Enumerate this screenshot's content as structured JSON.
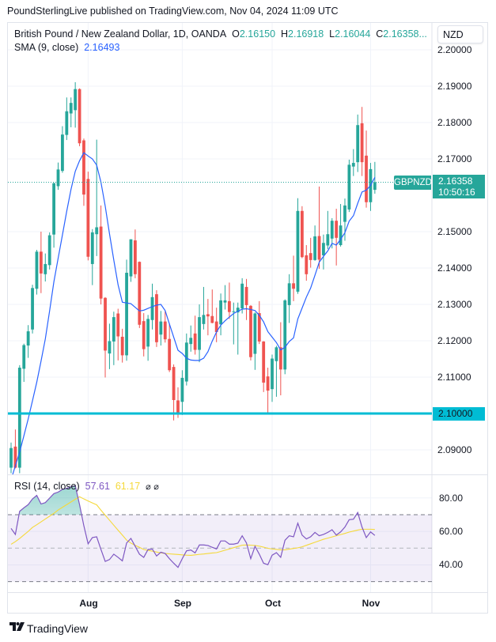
{
  "header": {
    "publish_line": "PoundSterlingLive published on TradingView.com, Nov 04, 2024 11:09 UTC"
  },
  "legend": {
    "symbol_title": "British Pound / New Zealand Dollar, 1D, OANDA",
    "open_label": "O",
    "open": "2.16150",
    "high_label": "H",
    "high": "2.16918",
    "low_label": "L",
    "low": "2.16044",
    "close_label": "C",
    "close": "2.16358...",
    "sma_title": "SMA (9, close)",
    "sma_value": "2.16493"
  },
  "currency_button": "NZD",
  "price_axis": [
    "2.20000",
    "2.19000",
    "2.18000",
    "2.17000",
    "2.15000",
    "2.14000",
    "2.13000",
    "2.12000",
    "2.11000",
    "2.09000"
  ],
  "last_price": {
    "symbol": "GBPNZD",
    "price": "2.16358",
    "countdown": "10:50:16"
  },
  "horizontal_line": {
    "label": "2.10000",
    "price": 2.1,
    "color": "#00bcd4"
  },
  "rsi_legend": {
    "title": "RSI (14, close)",
    "rsi_value": "57.61",
    "ma_value": "61.17",
    "icons": [
      "hidden-value-icon",
      "hidden-value-icon"
    ]
  },
  "rsi_axis": [
    "80.00",
    "60.00",
    "40.00"
  ],
  "time_axis": [
    "Aug",
    "Sep",
    "Oct",
    "Nov"
  ],
  "footer": {
    "brand": "TradingView",
    "logo_icon": "tradingview-logo-icon"
  },
  "colors": {
    "up": "#26a69a",
    "down": "#ef5350",
    "sma": "#2962ff",
    "rsi": "#7e57c2",
    "rsi_ma": "#f5d93a",
    "hline": "#00bcd4"
  },
  "chart_data": {
    "type": "candlestick",
    "symbol": "GBPNZD",
    "interval": "1D",
    "ylim": [
      2.08,
      2.2
    ],
    "grid": true,
    "month_ticks": [
      {
        "label": "Aug",
        "date": "2024-08-01"
      },
      {
        "label": "Sep",
        "date": "2024-09-02"
      },
      {
        "label": "Oct",
        "date": "2024-10-01"
      },
      {
        "label": "Nov",
        "date": "2024-11-01"
      }
    ],
    "dates": [
      "2024-07-08",
      "2024-07-09",
      "2024-07-10",
      "2024-07-11",
      "2024-07-12",
      "2024-07-15",
      "2024-07-16",
      "2024-07-17",
      "2024-07-18",
      "2024-07-19",
      "2024-07-22",
      "2024-07-23",
      "2024-07-24",
      "2024-07-25",
      "2024-07-26",
      "2024-07-29",
      "2024-07-30",
      "2024-07-31",
      "2024-08-01",
      "2024-08-02",
      "2024-08-05",
      "2024-08-06",
      "2024-08-07",
      "2024-08-08",
      "2024-08-09",
      "2024-08-12",
      "2024-08-13",
      "2024-08-14",
      "2024-08-15",
      "2024-08-16",
      "2024-08-19",
      "2024-08-20",
      "2024-08-21",
      "2024-08-22",
      "2024-08-23",
      "2024-08-26",
      "2024-08-27",
      "2024-08-28",
      "2024-08-29",
      "2024-08-30",
      "2024-09-02",
      "2024-09-03",
      "2024-09-04",
      "2024-09-05",
      "2024-09-06",
      "2024-09-09",
      "2024-09-10",
      "2024-09-11",
      "2024-09-12",
      "2024-09-13",
      "2024-09-16",
      "2024-09-17",
      "2024-09-18",
      "2024-09-19",
      "2024-09-20",
      "2024-09-23",
      "2024-09-24",
      "2024-09-25",
      "2024-09-26",
      "2024-09-27",
      "2024-09-30",
      "2024-10-01",
      "2024-10-02",
      "2024-10-03",
      "2024-10-04",
      "2024-10-07",
      "2024-10-08",
      "2024-10-09",
      "2024-10-10",
      "2024-10-11",
      "2024-10-14",
      "2024-10-15",
      "2024-10-16",
      "2024-10-17",
      "2024-10-18",
      "2024-10-21",
      "2024-10-22",
      "2024-10-23",
      "2024-10-24",
      "2024-10-25",
      "2024-10-28",
      "2024-10-29",
      "2024-10-30",
      "2024-10-31",
      "2024-11-01",
      "2024-11-04"
    ],
    "open": [
      2.0851,
      2.0909,
      2.0851,
      2.1123,
      2.1187,
      2.1231,
      2.1343,
      2.1445,
      2.1383,
      2.1408,
      2.1492,
      2.1625,
      2.1667,
      2.1766,
      2.1825,
      2.1834,
      2.1892,
      2.1751,
      2.1645,
      2.1411,
      2.1493,
      2.1514,
      2.1318,
      2.1165,
      2.1198,
      2.1275,
      2.1211,
      2.116,
      2.1377,
      2.1476,
      2.1417,
      2.1254,
      2.1184,
      2.1257,
      2.1328,
      2.1217,
      2.1253,
      2.1205,
      2.1128,
      2.1036,
      2.1032,
      2.1088,
      2.1191,
      2.122,
      2.1175,
      2.1246,
      2.1273,
      2.1268,
      2.1253,
      2.1245,
      2.1305,
      2.1309,
      2.128,
      2.1278,
      2.1289,
      2.1348,
      2.1296,
      2.1164,
      2.1276,
      2.1198,
      2.1102,
      2.1067,
      2.1144,
      2.1182,
      2.1121,
      2.1298,
      2.1358,
      2.1335,
      2.1557,
      2.1435,
      2.1441,
      2.1422,
      2.1488,
      2.1435,
      2.1462,
      2.1481,
      2.153,
      2.1463,
      2.1527,
      2.1561,
      2.1679,
      2.1691,
      2.1798,
      2.1709,
      2.1581,
      2.1615
    ],
    "high": [
      2.092,
      2.0956,
      2.1133,
      2.1192,
      2.1243,
      2.1354,
      2.145,
      2.15,
      2.144,
      2.1498,
      2.1635,
      2.169,
      2.179,
      2.1869,
      2.1869,
      2.1911,
      2.1894,
      2.1756,
      2.1665,
      2.1507,
      2.1753,
      2.1572,
      2.132,
      2.1247,
      2.128,
      2.1288,
      2.1233,
      2.1423,
      2.1479,
      2.1506,
      2.1418,
      2.1276,
      2.1271,
      2.1357,
      2.1339,
      2.1282,
      2.1281,
      2.1247,
      2.1135,
      2.1072,
      2.1119,
      2.122,
      2.1242,
      2.1269,
      2.13,
      2.1348,
      2.1315,
      2.1341,
      2.1291,
      2.133,
      2.1353,
      2.136,
      2.1305,
      2.1305,
      2.1372,
      2.137,
      2.1298,
      2.1278,
      2.1309,
      2.1199,
      2.1126,
      2.1162,
      2.1186,
      2.1251,
      2.1314,
      2.1383,
      2.1434,
      2.1592,
      2.157,
      2.1463,
      2.1483,
      2.1517,
      2.1624,
      2.1492,
      2.1557,
      2.1537,
      2.1563,
      2.1576,
      2.1591,
      2.1698,
      2.1727,
      2.1822,
      2.1843,
      2.1778,
      2.1689,
      2.16918
    ],
    "low": [
      2.0836,
      2.0849,
      2.0836,
      2.1087,
      2.1153,
      2.122,
      2.1327,
      2.1331,
      2.1363,
      2.1396,
      2.1456,
      2.1615,
      2.1662,
      2.1752,
      2.1787,
      2.1786,
      2.1735,
      2.1571,
      2.1421,
      2.1353,
      2.1433,
      2.13,
      2.1099,
      2.1122,
      2.1133,
      2.1146,
      2.114,
      2.1145,
      2.1362,
      2.1372,
      2.1235,
      2.1157,
      2.1145,
      2.1231,
      2.1183,
      2.1187,
      2.1195,
      2.1114,
      2.0981,
      2.0988,
      2.0996,
      2.1077,
      2.117,
      2.1162,
      2.1141,
      2.1231,
      2.1215,
      2.1248,
      2.1196,
      2.1215,
      2.1286,
      2.126,
      2.119,
      2.1162,
      2.1275,
      2.1257,
      2.1146,
      2.112,
      2.1191,
      2.1059,
      2.1,
      2.1032,
      2.1046,
      2.105,
      2.1108,
      2.1249,
      2.1309,
      2.1329,
      2.1427,
      2.1365,
      2.1401,
      2.142,
      2.1398,
      2.1396,
      2.1452,
      2.1454,
      2.1407,
      2.1459,
      2.1475,
      2.1554,
      2.1653,
      2.1664,
      2.1653,
      2.1566,
      2.1557,
      2.16044
    ],
    "close": [
      2.0905,
      2.0851,
      2.1126,
      2.1188,
      2.1226,
      2.1345,
      2.1445,
      2.1385,
      2.1411,
      2.149,
      2.1633,
      2.1671,
      2.1767,
      2.1831,
      2.1854,
      2.1892,
      2.1743,
      2.1602,
      2.1431,
      2.1498,
      2.1512,
      2.1316,
      2.1173,
      2.1199,
      2.1265,
      2.1212,
      2.116,
      2.1387,
      2.1479,
      2.1383,
      2.1244,
      2.1177,
      2.126,
      2.132,
      2.1196,
      2.1253,
      2.1204,
      2.1119,
      2.1037,
      2.1003,
      2.1098,
      2.1195,
      2.1208,
      2.1175,
      2.1265,
      2.1271,
      2.1267,
      2.1249,
      2.1224,
      2.1311,
      2.1311,
      2.1279,
      2.1281,
      2.1291,
      2.1357,
      2.1298,
      2.1155,
      2.1275,
      2.1198,
      2.1085,
      2.1063,
      2.1151,
      2.1182,
      2.1121,
      2.1311,
      2.1358,
      2.1343,
      2.1557,
      2.143,
      2.1383,
      2.1422,
      2.1487,
      2.1423,
      2.1469,
      2.1493,
      2.153,
      2.1483,
      2.1517,
      2.1572,
      2.1684,
      2.1689,
      2.1793,
      2.1691,
      2.1581,
      2.1672,
      2.16358
    ],
    "sma9": [
      2.0818,
      2.0856,
      2.0894,
      2.0939,
      2.0985,
      2.1035,
      2.1086,
      2.1144,
      2.1205,
      2.1282,
      2.1362,
      2.1427,
      2.1491,
      2.1556,
      2.1616,
      2.1666,
      2.1695,
      2.1717,
      2.1708,
      2.17,
      2.1683,
      2.1636,
      2.157,
      2.1494,
      2.1422,
      2.1354,
      2.1306,
      2.1304,
      2.1302,
      2.1292,
      2.1282,
      2.1284,
      2.1289,
      2.1294,
      2.1298,
      2.13,
      2.1283,
      2.1246,
      2.121,
      2.1174,
      2.1165,
      2.1152,
      2.1147,
      2.1146,
      2.1146,
      2.1152,
      2.117,
      2.1199,
      2.1224,
      2.1243,
      2.1255,
      2.1265,
      2.1275,
      2.1281,
      2.1287,
      2.1288,
      2.1286,
      2.1283,
      2.127,
      2.1252,
      2.1225,
      2.121,
      2.1195,
      2.1175,
      2.1182,
      2.1198,
      2.1208,
      2.126,
      2.129,
      2.132,
      2.1345,
      2.138,
      2.1416,
      2.1432,
      2.1447,
      2.1468,
      2.1463,
      2.1479,
      2.1497,
      2.1529,
      2.1544,
      2.1578,
      2.1609,
      2.1614,
      2.1627,
      2.16493
    ],
    "rsi": [
      61.8,
      58.2,
      72.0,
      74.1,
      76.0,
      79.4,
      81.5,
      76.4,
      77.2,
      79.9,
      82.6,
      83.5,
      85.1,
      85.7,
      86.7,
      87.3,
      76.0,
      63.4,
      52.6,
      56.3,
      56.8,
      49.2,
      42.1,
      43.2,
      46.4,
      44.5,
      42.4,
      53.1,
      55.8,
      51.1,
      46.4,
      44.5,
      49.2,
      49.5,
      45.3,
      47.6,
      46.8,
      43.7,
      41.0,
      38.5,
      43.7,
      48.4,
      48.9,
      47.2,
      51.9,
      51.9,
      51.6,
      50.5,
      49.5,
      54.3,
      54.3,
      52.4,
      52.4,
      53.0,
      57.4,
      53.1,
      43.7,
      51.1,
      46.4,
      41.0,
      40.1,
      45.8,
      47.3,
      44.5,
      54.7,
      57.4,
      56.8,
      64.9,
      57.8,
      55.5,
      56.8,
      59.4,
      57.4,
      58.2,
      59.4,
      61.0,
      57.8,
      59.7,
      62.6,
      67.0,
      67.3,
      71.3,
      62.6,
      56.3,
      59.7,
      57.61
    ],
    "rsi_ma": [
      52.3,
      53.9,
      55.8,
      57.9,
      60.0,
      62.4,
      64.0,
      65.7,
      67.4,
      69.1,
      70.8,
      72.8,
      74.4,
      76.0,
      77.6,
      79.2,
      80.7,
      79.4,
      78.2,
      77.0,
      75.9,
      72.7,
      69.7,
      66.7,
      63.7,
      60.7,
      57.8,
      54.8,
      53.0,
      51.7,
      50.5,
      49.2,
      48.7,
      48.2,
      47.7,
      47.2,
      46.8,
      46.6,
      46.4,
      46.2,
      46.0,
      45.8,
      45.7,
      46.0,
      46.3,
      46.5,
      46.8,
      47.1,
      47.3,
      48.0,
      48.8,
      49.5,
      50.3,
      51.0,
      51.8,
      51.9,
      51.8,
      51.6,
      51.2,
      50.6,
      49.9,
      49.5,
      49.3,
      49.0,
      49.0,
      49.4,
      49.8,
      50.2,
      50.8,
      51.7,
      52.6,
      53.5,
      54.4,
      55.3,
      56.0,
      56.7,
      57.4,
      58.1,
      58.8,
      59.6,
      60.2,
      60.8,
      61.3,
      61.3,
      61.3,
      61.17
    ],
    "rsi_levels": {
      "upper": 70,
      "middle": 50,
      "lower": 30
    },
    "rsi_ylim": [
      22,
      90
    ]
  }
}
